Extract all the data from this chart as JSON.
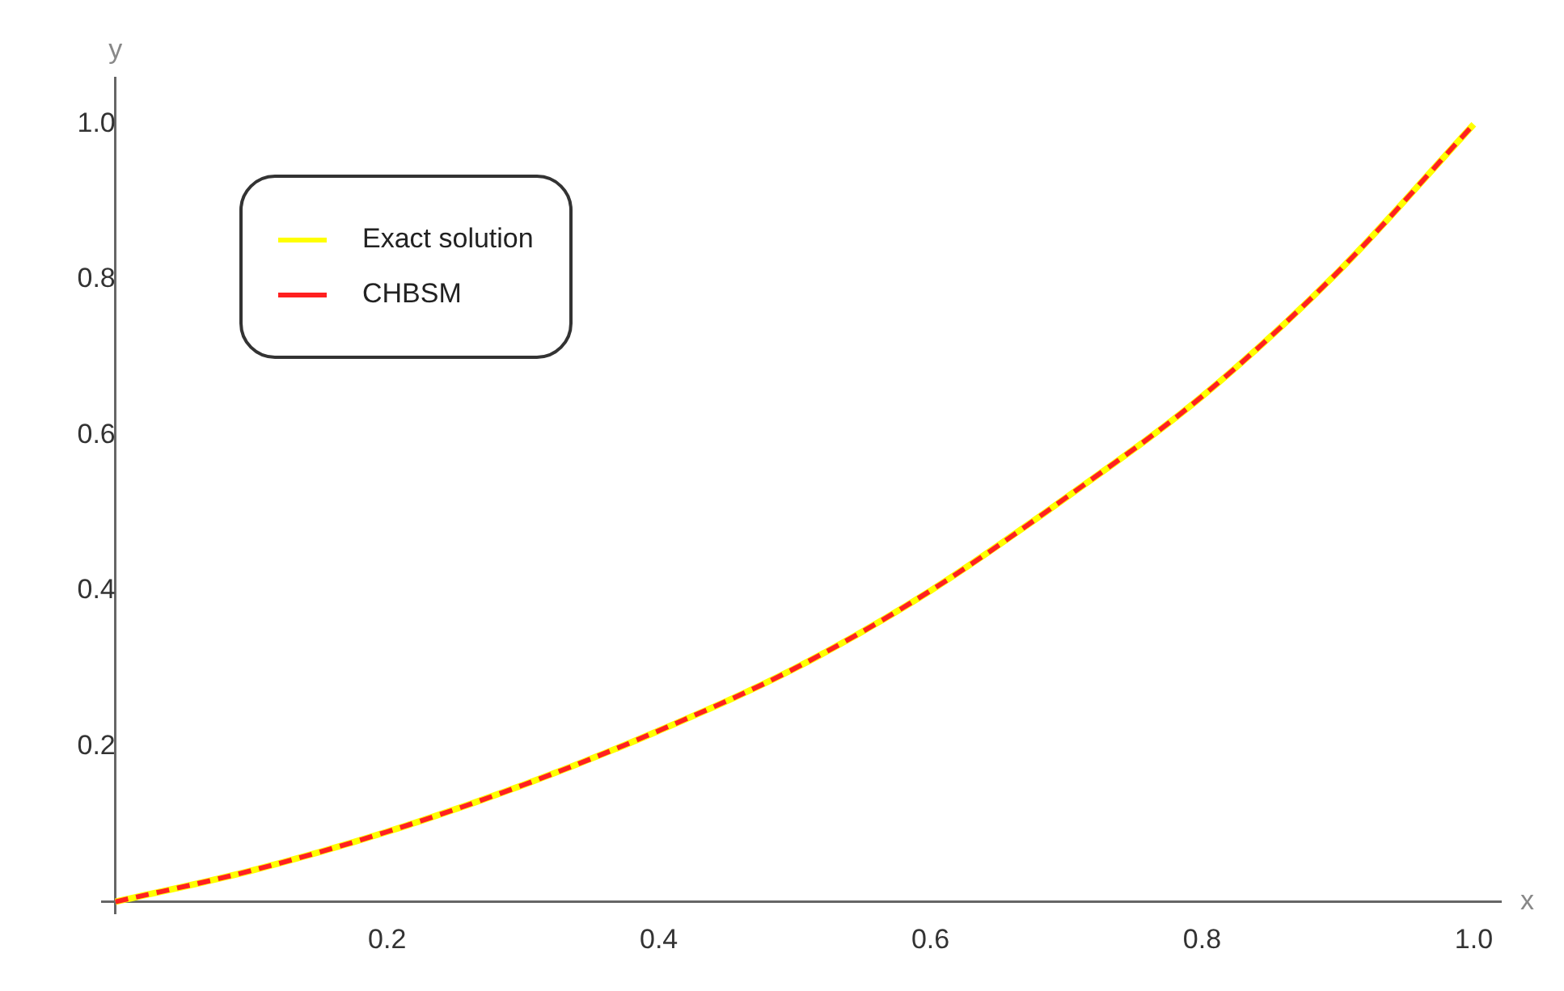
{
  "chart_data": {
    "type": "line",
    "xlabel": "x",
    "ylabel": "y",
    "x": [
      0,
      0.1,
      0.2,
      0.3,
      0.4,
      0.5,
      0.6,
      0.7,
      0.8,
      0.9,
      1.0
    ],
    "xlim": [
      -0.01,
      1.02
    ],
    "ylim": [
      -0.015,
      1.06
    ],
    "xticks": [
      0.2,
      0.4,
      0.6,
      0.8,
      {
        "value": 1,
        "label": "1.0"
      }
    ],
    "yticks": [
      0.2,
      0.4,
      0.6,
      0.8,
      {
        "value": 1,
        "label": "1.0"
      }
    ],
    "legend": "top left",
    "marker": "none",
    "grid": false,
    "series": [
      {
        "name": "Exact solution",
        "color": "#ffff00",
        "line_style": "solid",
        "values": [
          0,
          0.04,
          0.09,
          0.15,
          0.22,
          0.3,
          0.4,
          0.52,
          0.65,
          0.81,
          1.0
        ]
      },
      {
        "name": "CHBSM",
        "color": "#ff2020",
        "line_style": "dashed",
        "values": [
          0,
          0.04,
          0.09,
          0.15,
          0.22,
          0.3,
          0.4,
          0.52,
          0.65,
          0.81,
          1.0
        ]
      }
    ]
  }
}
